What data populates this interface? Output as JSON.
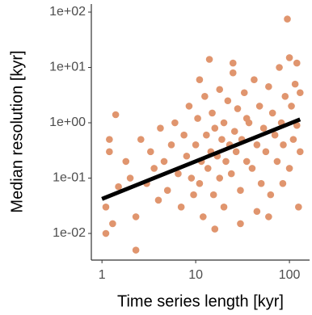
{
  "chart_data": {
    "type": "scatter",
    "x_label": "Time series length [kyr]",
    "y_label": "Median resolution [kyr]",
    "xscale": "log",
    "yscale": "log",
    "xlim": [
      0.77,
      164
    ],
    "ylim": [
      0.0033,
      140
    ],
    "xticks": [
      1,
      10,
      100
    ],
    "yticks": [
      {
        "value": 0.01,
        "label": "1e-02"
      },
      {
        "value": 0.1,
        "label": "1e-01"
      },
      {
        "value": 1,
        "label": "1e+00"
      },
      {
        "value": 10,
        "label": "1e+01"
      },
      {
        "value": 100,
        "label": "1e+02"
      }
    ],
    "series": [
      {
        "color": "#e0956e",
        "x": [
          1.1,
          1.1,
          1.2,
          1.2,
          1.3,
          1.4,
          1.5,
          1.8,
          2.0,
          2.3,
          2.3,
          2.6,
          3.0,
          3.3,
          3.6,
          4.0,
          4.2,
          4.6,
          5.0,
          5.5,
          6.0,
          6.5,
          7.0,
          7.5,
          8.0,
          8.5,
          9.0,
          9.5,
          10,
          10.5,
          11,
          11.5,
          12,
          12.5,
          13,
          13.5,
          14,
          14.5,
          15,
          15.5,
          16,
          17,
          18,
          18,
          19,
          20,
          20,
          21,
          22,
          23,
          24,
          25,
          26,
          27,
          28,
          30,
          31,
          33,
          35,
          37,
          40,
          42,
          45,
          48,
          50,
          53,
          56,
          60,
          63,
          66,
          70,
          74,
          78,
          82,
          86,
          90,
          95,
          100,
          100,
          105,
          110,
          115,
          120,
          125,
          130,
          130,
          120,
          60,
          30,
          16,
          45,
          85,
          11,
          25,
          35
        ],
        "values": [
          0.03,
          0.01,
          0.3,
          0.5,
          0.015,
          1.4,
          0.07,
          0.2,
          0.1,
          0.005,
          0.02,
          0.5,
          0.08,
          0.3,
          0.15,
          0.04,
          0.8,
          0.2,
          0.06,
          0.4,
          1.0,
          0.12,
          0.03,
          0.6,
          0.25,
          2.0,
          0.1,
          0.05,
          0.4,
          1.2,
          0.08,
          0.2,
          0.02,
          3.0,
          0.6,
          0.15,
          14,
          0.3,
          1.5,
          0.05,
          0.8,
          0.25,
          4.0,
          0.1,
          0.5,
          1.0,
          0.03,
          0.2,
          2.5,
          0.4,
          0.12,
          12,
          0.7,
          0.3,
          1.8,
          0.06,
          0.5,
          3.5,
          0.2,
          1.0,
          0.15,
          6.0,
          0.4,
          2.0,
          0.08,
          0.8,
          0.3,
          4.5,
          0.05,
          1.5,
          0.6,
          0.2,
          10,
          1.0,
          0.4,
          3.0,
          75,
          15,
          0.15,
          2.0,
          0.5,
          5.0,
          0.9,
          0.03,
          3.5,
          0.3,
          12,
          0.02,
          0.015,
          0.012,
          0.025,
          0.08,
          6.0,
          8.0,
          1.2
        ]
      },
      {
        "color": "#000000",
        "x": [
          1,
          130
        ],
        "values": [
          0.042,
          1.15
        ]
      }
    ]
  }
}
